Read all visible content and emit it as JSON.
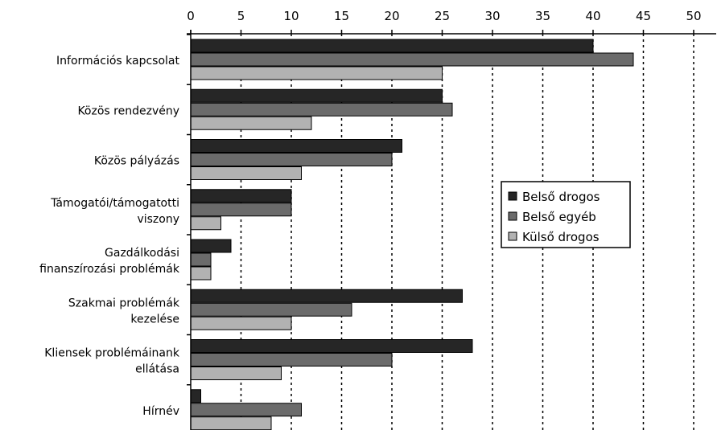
{
  "chart_data": {
    "type": "bar",
    "orientation": "horizontal",
    "categories": [
      [
        "Információs kapcsolat"
      ],
      [
        "Közös rendezvény"
      ],
      [
        "Közös pályázás"
      ],
      [
        "Támogatói/támogatotti",
        "viszony"
      ],
      [
        "Gazdálkodási",
        "finanszírozási problémák"
      ],
      [
        "Szakmai problémák",
        "kezelése"
      ],
      [
        "Kliensek problémáinank",
        "ellátása"
      ],
      [
        "Hírnév"
      ]
    ],
    "series": [
      {
        "name": "Belső drogos",
        "color": "#262626",
        "values": [
          40,
          25,
          21,
          10,
          4,
          27,
          28,
          1
        ]
      },
      {
        "name": "Belső egyéb",
        "color": "#6b6b6b",
        "values": [
          44,
          26,
          20,
          10,
          2,
          16,
          20,
          11
        ]
      },
      {
        "name": "Külső drogos",
        "color": "#b2b2b2",
        "values": [
          25,
          12,
          11,
          3,
          2,
          10,
          9,
          8
        ]
      }
    ],
    "xlim": [
      0,
      50
    ],
    "xticks": [
      0,
      5,
      10,
      15,
      20,
      25,
      30,
      35,
      40,
      45,
      50
    ],
    "x_axis_position": "top",
    "grid": "vertical dotted",
    "legend_position": "right-middle",
    "title": "",
    "xlabel": "",
    "ylabel": ""
  }
}
